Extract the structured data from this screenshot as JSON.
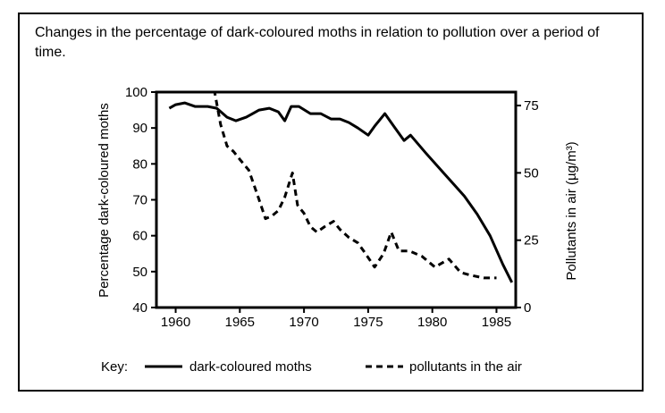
{
  "title": "Changes in the percentage of dark-coloured moths in relation to pollution over a period of time.",
  "chart_data": {
    "type": "line",
    "xlabel": "",
    "ylabel": "Percentage dark-coloured moths",
    "y2label": "Pollutants in air (µg/m³)",
    "xlim": [
      1958.5,
      1986.5
    ],
    "ylim": [
      40,
      100
    ],
    "y2lim": [
      0,
      80
    ],
    "x_ticks": [
      1960,
      1965,
      1970,
      1975,
      1980,
      1985
    ],
    "y_ticks": [
      40,
      50,
      60,
      70,
      80,
      90,
      100
    ],
    "y2_ticks": [
      0,
      25,
      50,
      75
    ],
    "grid": false,
    "key_label": "Key:",
    "series": [
      {
        "name": "dark-coloured moths",
        "axis": "left",
        "style": "solid",
        "x": [
          1959.5,
          1960,
          1960.7,
          1961.5,
          1962.5,
          1963.2,
          1964,
          1964.7,
          1965.5,
          1966.5,
          1967.3,
          1968,
          1968.5,
          1969,
          1969.6,
          1970.5,
          1971.3,
          1972.1,
          1972.8,
          1973.5,
          1974.2,
          1975,
          1975.5,
          1976.3,
          1977,
          1977.8,
          1978.3,
          1979.5,
          1981,
          1982.5,
          1983.5,
          1984.5,
          1985.5,
          1986.2
        ],
        "y": [
          95.5,
          96.5,
          97,
          96,
          96,
          95.5,
          93,
          92,
          93,
          95,
          95.5,
          94.5,
          92,
          96,
          96,
          94,
          94,
          92.5,
          92.5,
          91.5,
          90,
          88,
          90.5,
          94,
          90.5,
          86.5,
          88,
          83,
          77,
          71,
          66,
          60,
          52,
          47
        ]
      },
      {
        "name": "pollutants in the air",
        "axis": "right",
        "style": "dashed",
        "x": [
          1963,
          1963.5,
          1964,
          1964.5,
          1965,
          1965.7,
          1966.5,
          1967,
          1967.5,
          1968,
          1968.5,
          1969.1,
          1969.5,
          1970,
          1970.5,
          1971,
          1971.6,
          1972.3,
          1972.8,
          1973.5,
          1974.2,
          1974.8,
          1975.5,
          1976.2,
          1976.8,
          1977.4,
          1978.2,
          1979.2,
          1980.2,
          1981.3,
          1982.2,
          1983,
          1984,
          1985
        ],
        "y": [
          81,
          68,
          60,
          58,
          55,
          51,
          40,
          33,
          34,
          36,
          41,
          50,
          38,
          35,
          30,
          28,
          30,
          32,
          29,
          26,
          24,
          20,
          15,
          20,
          28,
          21,
          21,
          19,
          15,
          18,
          13,
          12,
          11,
          11
        ]
      }
    ]
  }
}
